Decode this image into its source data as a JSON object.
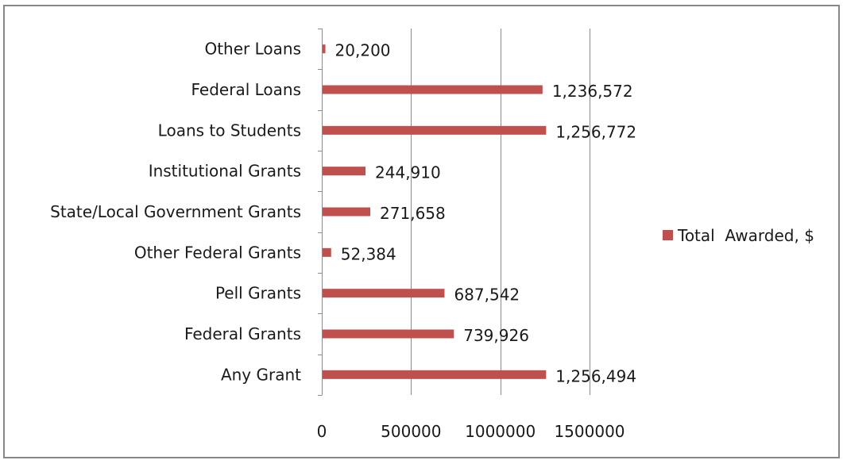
{
  "chart_data": {
    "type": "bar",
    "orientation": "horizontal",
    "categories": [
      "Any Grant",
      "Federal Grants",
      "Pell Grants",
      "Other Federal Grants",
      "State/Local Government Grants",
      "Institutional Grants",
      "Loans to Students",
      "Federal Loans",
      "Other Loans"
    ],
    "series": [
      {
        "name": "Total  Awarded, $",
        "values": [
          1256494,
          739926,
          687542,
          52384,
          271658,
          244910,
          1256772,
          1236572,
          20200
        ],
        "value_labels": [
          "1,256,494",
          "739,926",
          "687,542",
          "52,384",
          "271,658",
          "244,910",
          "1,256,772",
          "1,236,572",
          "20,200"
        ],
        "color": "#c0504d"
      }
    ],
    "xlim": [
      0,
      1500000
    ],
    "xticks": [
      0,
      500000,
      1000000,
      1500000
    ],
    "xtick_labels": [
      "0",
      "500000",
      "1000000",
      "1500000"
    ],
    "grid": "vertical major gridlines",
    "legend": "right",
    "title": "",
    "xlabel": "",
    "ylabel": ""
  }
}
